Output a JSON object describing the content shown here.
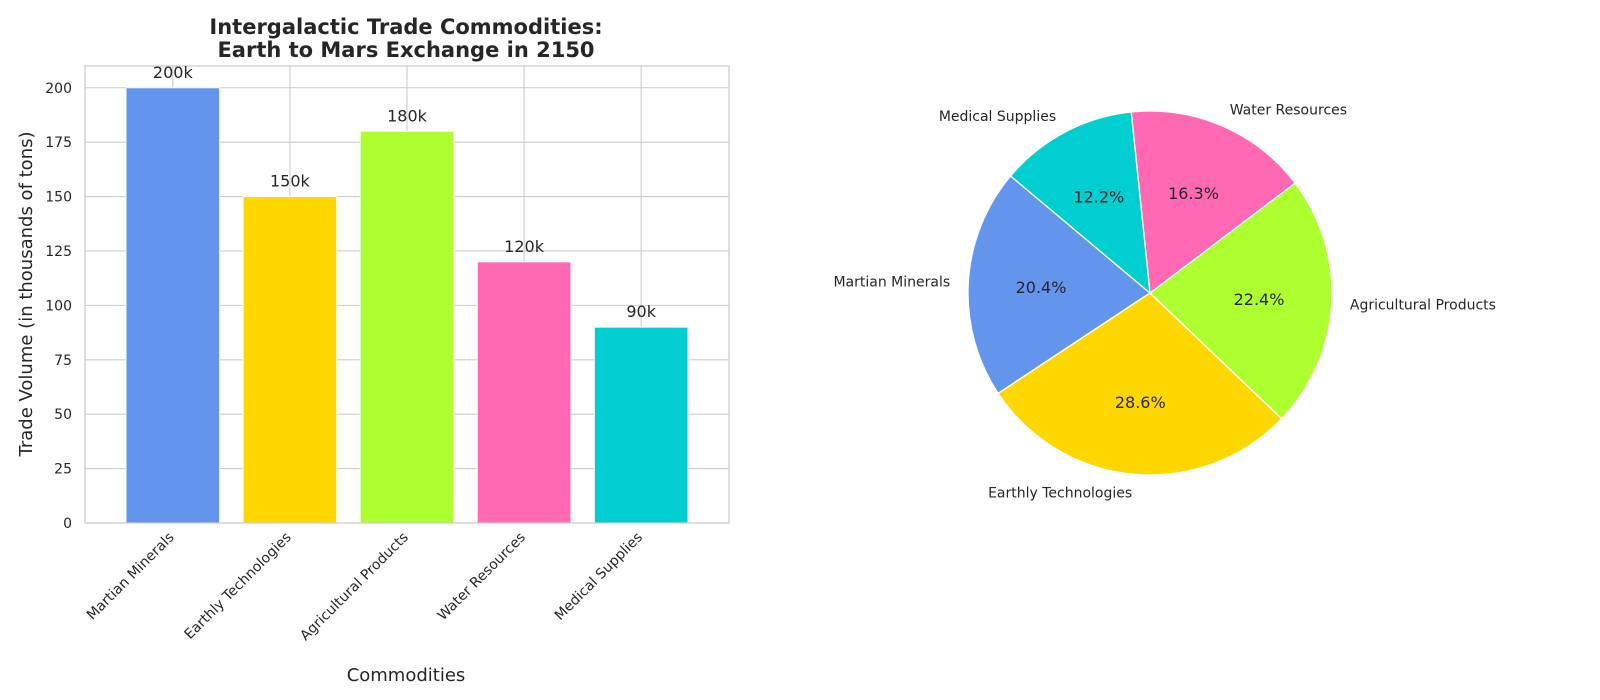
{
  "chart_data": [
    {
      "type": "bar",
      "title_lines": [
        "Intergalactic Trade Commodities:",
        "Earth to Mars Exchange in 2150"
      ],
      "xlabel": "Commodities",
      "ylabel": "Trade Volume (in thousands of tons)",
      "categories": [
        "Martian Minerals",
        "Earthly Technologies",
        "Agricultural Products",
        "Water Resources",
        "Medical Supplies"
      ],
      "values": [
        200,
        150,
        180,
        120,
        90
      ],
      "data_labels": [
        "200k",
        "150k",
        "180k",
        "120k",
        "90k"
      ],
      "colors": [
        "#6495ED",
        "#FFD700",
        "#ADFF2F",
        "#FF69B4",
        "#00CED1"
      ],
      "ylim": [
        0,
        210
      ],
      "yticks": [
        0,
        25,
        50,
        75,
        100,
        125,
        150,
        175,
        200
      ],
      "grid": true
    },
    {
      "type": "pie",
      "labels": [
        "Martian Minerals",
        "Earthly Technologies",
        "Agricultural Products",
        "Water Resources",
        "Medical Supplies"
      ],
      "values": [
        200,
        280,
        220,
        160,
        120
      ],
      "percent_labels": [
        "20.4%",
        "28.6%",
        "22.4%",
        "16.3%",
        "12.2%"
      ],
      "colors": [
        "#6495ED",
        "#FFD700",
        "#ADFF2F",
        "#FF69B4",
        "#00CED1"
      ]
    }
  ]
}
